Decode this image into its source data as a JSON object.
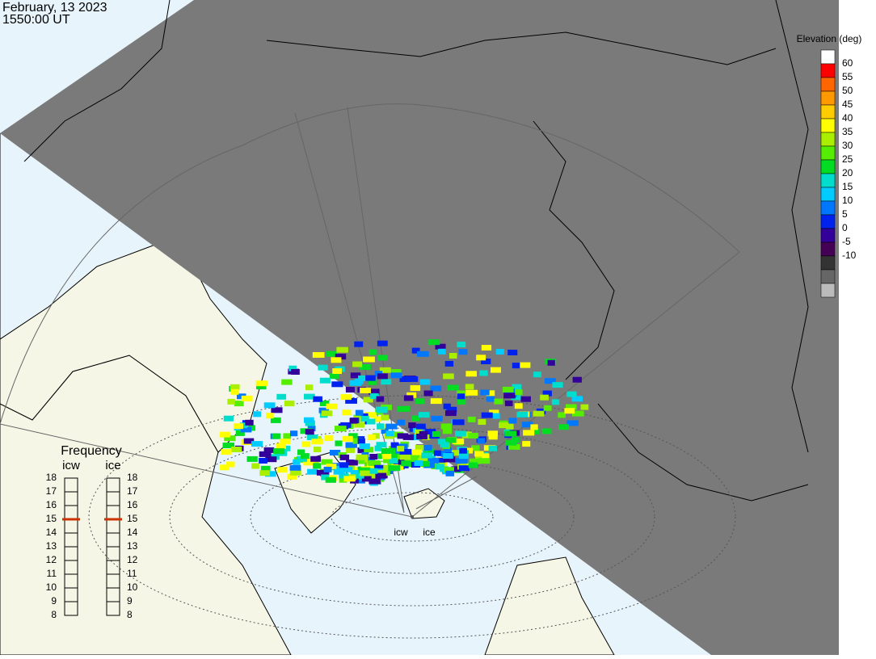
{
  "header": {
    "date": "February, 13 2023",
    "time": "1550:00 UT"
  },
  "legend": {
    "title": "Elevation (deg)",
    "ticks": [
      60,
      55,
      50,
      45,
      40,
      35,
      30,
      25,
      20,
      15,
      10,
      5,
      0,
      -5,
      -10
    ],
    "colors": [
      "#ffffff",
      "#ff0000",
      "#ff6600",
      "#ff9900",
      "#ffcc00",
      "#ffff00",
      "#aaee00",
      "#55ee00",
      "#00dd22",
      "#00ddcc",
      "#00ccff",
      "#0077ff",
      "#0022ee",
      "#330099",
      "#440055",
      "#333333",
      "#666666",
      "#bbbbbb"
    ]
  },
  "frequency": {
    "title": "Frequency",
    "radars": [
      {
        "name": "icw",
        "ticks": [
          8,
          9,
          10,
          11,
          12,
          13,
          14,
          15,
          16,
          17,
          18
        ],
        "selected": 15
      },
      {
        "name": "ice",
        "ticks": [
          8,
          9,
          10,
          11,
          12,
          13,
          14,
          15,
          16,
          17,
          18
        ],
        "selected": 15
      }
    ]
  },
  "stations": [
    "icw",
    "ice"
  ]
}
